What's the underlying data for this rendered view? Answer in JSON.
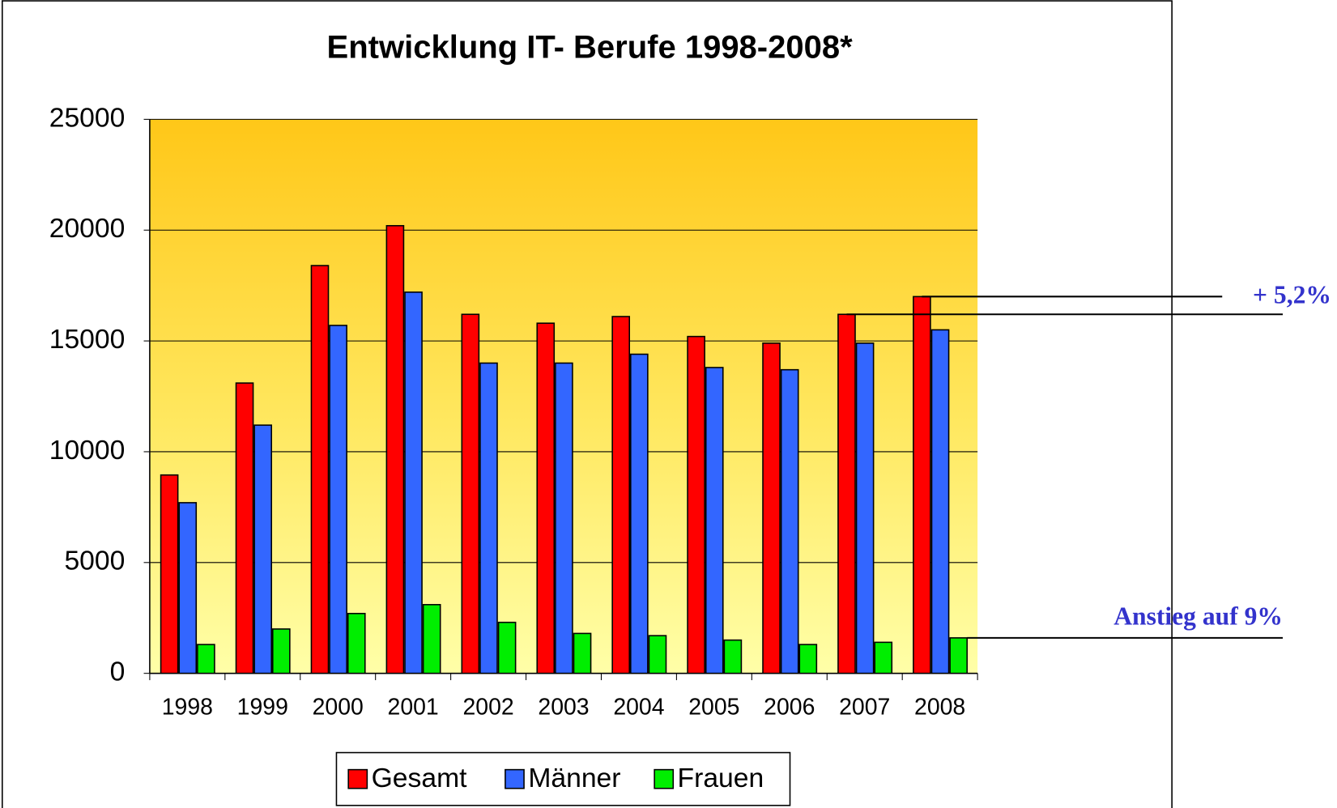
{
  "chart_data": {
    "type": "bar",
    "title": "Entwicklung IT- Berufe 1998-2008*",
    "categories": [
      "1998",
      "1999",
      "2000",
      "2001",
      "2002",
      "2003",
      "2004",
      "2005",
      "2006",
      "2007",
      "2008"
    ],
    "series": [
      {
        "name": "Gesamt",
        "color": "#ff0000",
        "values": [
          8950,
          13100,
          18400,
          20200,
          16200,
          15800,
          16100,
          15200,
          14900,
          16200,
          17000
        ]
      },
      {
        "name": "Männer",
        "color": "#3366ff",
        "values": [
          7700,
          11200,
          15700,
          17200,
          14000,
          14000,
          14400,
          13800,
          13700,
          14900,
          15500
        ]
      },
      {
        "name": "Frauen",
        "color": "#00ee00",
        "values": [
          1300,
          2000,
          2700,
          3100,
          2300,
          1800,
          1700,
          1500,
          1300,
          1400,
          1600
        ]
      }
    ],
    "ylim": [
      0,
      25000
    ],
    "yticks": [
      0,
      5000,
      10000,
      15000,
      20000,
      25000
    ],
    "grid": true,
    "legend": "bottom",
    "annotations": [
      "+ 5,2%",
      "Anstieg auf 9%"
    ]
  }
}
